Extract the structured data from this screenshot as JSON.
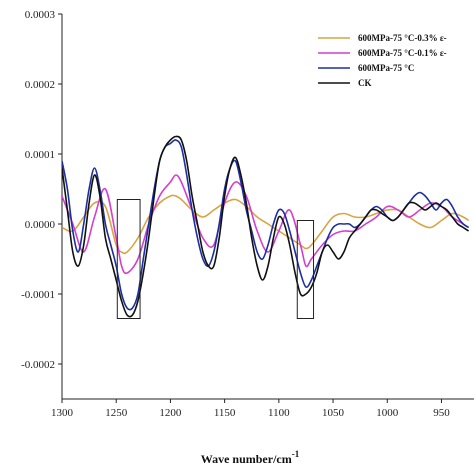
{
  "chart_data": {
    "type": "line",
    "title": "",
    "xlabel": "Wave number/cm",
    "xlabel_superscript": "-1",
    "ylabel": "",
    "xlim": [
      1300,
      920
    ],
    "x_reversed": true,
    "ylim": [
      -0.00025,
      0.0003
    ],
    "x_ticks": [
      1300,
      1250,
      1200,
      1150,
      1100,
      1050,
      1000,
      950
    ],
    "y_ticks": [
      {
        "value": -0.0002,
        "label": "-0.0002"
      },
      {
        "value": -0.0001,
        "label": "-0.0001"
      },
      {
        "value": 0,
        "label": "0.0000"
      },
      {
        "value": 0.0001,
        "label": "0.0001"
      },
      {
        "value": 0.0002,
        "label": "0.0002"
      },
      {
        "value": 0.0003,
        "label": "0.0003"
      }
    ],
    "grid": false,
    "legend_position": "top-right",
    "highlight_boxes": [
      {
        "x_range": [
          1249,
          1228
        ],
        "y_range": [
          -0.000135,
          3.5e-05
        ]
      },
      {
        "x_range": [
          1083,
          1068
        ],
        "y_range": [
          -0.000135,
          5e-06
        ]
      }
    ],
    "series": [
      {
        "name": "600MPa-75 °C-0.3% ε-",
        "color": "#d9a441",
        "x": [
          1300,
          1290,
          1280,
          1270,
          1260,
          1250,
          1245,
          1240,
          1230,
          1220,
          1210,
          1200,
          1195,
          1190,
          1180,
          1170,
          1160,
          1150,
          1140,
          1130,
          1120,
          1110,
          1100,
          1090,
          1080,
          1075,
          1070,
          1060,
          1050,
          1040,
          1030,
          1020,
          1010,
          1000,
          990,
          980,
          970,
          960,
          950,
          940,
          930,
          925
        ],
        "y": [
          -5e-06,
          -1e-05,
          1e-05,
          3e-05,
          2.5e-05,
          -3e-05,
          -4e-05,
          -4e-05,
          -2e-05,
          1e-05,
          3e-05,
          4e-05,
          4e-05,
          3.5e-05,
          2e-05,
          1e-05,
          2e-05,
          3e-05,
          3.5e-05,
          2.5e-05,
          1e-05,
          0.0,
          -1e-05,
          -2e-05,
          -3e-05,
          -3.5e-05,
          -3e-05,
          -1e-05,
          1e-05,
          1.5e-05,
          1e-05,
          1e-05,
          1.5e-05,
          2e-05,
          2e-05,
          1e-05,
          0.0,
          -5e-06,
          5e-06,
          1.5e-05,
          1e-05,
          5e-06
        ]
      },
      {
        "name": "600MPa-75 °C-0.1% ε-",
        "color": "#d43fd0",
        "x": [
          1300,
          1290,
          1280,
          1270,
          1260,
          1250,
          1245,
          1240,
          1230,
          1220,
          1210,
          1200,
          1195,
          1190,
          1180,
          1170,
          1160,
          1150,
          1140,
          1130,
          1120,
          1110,
          1100,
          1090,
          1080,
          1075,
          1070,
          1060,
          1050,
          1040,
          1030,
          1020,
          1010,
          1000,
          990,
          980,
          970,
          960,
          950,
          940,
          930,
          925
        ],
        "y": [
          4e-05,
          0.0,
          -4e-05,
          1e-05,
          5e-05,
          -2e-05,
          -6e-05,
          -7e-05,
          -5e-05,
          0.0,
          4e-05,
          6e-05,
          7e-05,
          6e-05,
          2e-05,
          -2e-05,
          -3e-05,
          3e-05,
          6e-05,
          4e-05,
          -1e-05,
          -4e-05,
          -1e-05,
          2e-05,
          -3e-05,
          -6e-05,
          -5e-05,
          -3e-05,
          -1.5e-05,
          -1e-05,
          -1e-05,
          0.0,
          1e-05,
          2.5e-05,
          2e-05,
          1e-05,
          2e-05,
          3e-05,
          2.5e-05,
          1e-05,
          0.0,
          -5e-06
        ]
      },
      {
        "name": "600MPa-75 °C",
        "color": "#1c2fa0",
        "x": [
          1300,
          1295,
          1290,
          1285,
          1280,
          1275,
          1270,
          1265,
          1260,
          1255,
          1250,
          1245,
          1240,
          1235,
          1230,
          1225,
          1220,
          1215,
          1210,
          1205,
          1200,
          1195,
          1190,
          1185,
          1180,
          1175,
          1170,
          1165,
          1160,
          1155,
          1150,
          1145,
          1140,
          1135,
          1130,
          1125,
          1120,
          1115,
          1110,
          1105,
          1100,
          1095,
          1090,
          1085,
          1080,
          1075,
          1070,
          1065,
          1060,
          1055,
          1050,
          1045,
          1040,
          1035,
          1030,
          1025,
          1020,
          1015,
          1010,
          1005,
          1000,
          995,
          990,
          985,
          980,
          975,
          970,
          965,
          960,
          955,
          950,
          945,
          940,
          935,
          930,
          925
        ],
        "y": [
          9e-05,
          5e-05,
          -1e-05,
          -4e-05,
          0.0,
          5e-05,
          8e-05,
          5e-05,
          0.0,
          -3e-05,
          -6e-05,
          -0.0001,
          -0.00012,
          -0.00012,
          -0.0001,
          -5e-05,
          0.0,
          5e-05,
          9e-05,
          0.00011,
          0.000115,
          0.00012,
          0.00011,
          7e-05,
          2e-05,
          -2e-05,
          -5e-05,
          -6e-05,
          -4e-05,
          0.0,
          5e-05,
          8e-05,
          9e-05,
          6e-05,
          2e-05,
          -1e-05,
          -4e-05,
          -5e-05,
          -3e-05,
          0.0,
          2e-05,
          1.5e-05,
          -1e-05,
          -4e-05,
          -7e-05,
          -9e-05,
          -8e-05,
          -6e-05,
          -4e-05,
          -2e-05,
          -5e-06,
          0.0,
          0.0,
          0.0,
          -5e-06,
          0.0,
          1e-05,
          2e-05,
          2.5e-05,
          2e-05,
          1e-05,
          5e-06,
          1e-05,
          2e-05,
          3e-05,
          4e-05,
          4.5e-05,
          4e-05,
          3e-05,
          2e-05,
          3e-05,
          3.5e-05,
          2.5e-05,
          1e-05,
          0.0,
          -5e-06
        ]
      },
      {
        "name": "CK",
        "color": "#111111",
        "x": [
          1300,
          1295,
          1290,
          1285,
          1280,
          1275,
          1270,
          1265,
          1260,
          1255,
          1250,
          1245,
          1240,
          1235,
          1230,
          1225,
          1220,
          1215,
          1210,
          1205,
          1200,
          1195,
          1190,
          1185,
          1180,
          1175,
          1170,
          1165,
          1160,
          1155,
          1150,
          1145,
          1140,
          1135,
          1130,
          1125,
          1120,
          1115,
          1110,
          1105,
          1100,
          1095,
          1090,
          1085,
          1080,
          1075,
          1070,
          1065,
          1060,
          1055,
          1050,
          1045,
          1040,
          1035,
          1030,
          1025,
          1020,
          1015,
          1010,
          1005,
          1000,
          995,
          990,
          985,
          980,
          975,
          970,
          965,
          960,
          955,
          950,
          945,
          940,
          935,
          930,
          925
        ],
        "y": [
          8e-05,
          2e-05,
          -4e-05,
          -6e-05,
          -3e-05,
          3e-05,
          7e-05,
          4e-05,
          -2e-05,
          -5e-05,
          -8e-05,
          -0.00011,
          -0.00013,
          -0.00013,
          -0.00011,
          -7e-05,
          -2e-05,
          4e-05,
          9e-05,
          0.00011,
          0.00012,
          0.000125,
          0.00012,
          9e-05,
          4e-05,
          0.0,
          -4e-05,
          -6e-05,
          -6e-05,
          -2e-05,
          4e-05,
          8e-05,
          9.5e-05,
          7e-05,
          3e-05,
          -2e-05,
          -6e-05,
          -8e-05,
          -6e-05,
          -2e-05,
          1e-05,
          0.0,
          -3e-05,
          -7e-05,
          -0.0001,
          -0.0001,
          -9e-05,
          -7e-05,
          -4e-05,
          -3e-05,
          -4e-05,
          -5e-05,
          -4e-05,
          -2e-05,
          -1e-05,
          0.0,
          1e-05,
          2e-05,
          2e-05,
          1.5e-05,
          1e-05,
          5e-06,
          1e-05,
          2e-05,
          3e-05,
          3e-05,
          2.5e-05,
          2e-05,
          2.5e-05,
          3e-05,
          2.5e-05,
          2e-05,
          1e-05,
          0.0,
          -5e-06,
          -1e-05
        ]
      }
    ]
  }
}
